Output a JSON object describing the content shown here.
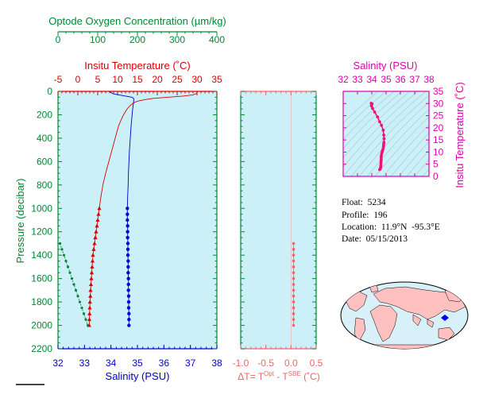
{
  "colors": {
    "panel_bg": "#ccf0f8",
    "oxygen": "#008833",
    "temperature": "#dd0000",
    "salinity": "#0000cc",
    "delta_t": "#ee6666",
    "ts_plot": "#dd00aa",
    "ts_points": "#ee1177",
    "land": "#ffc0c0",
    "ocean": "#d8f0f8"
  },
  "info": {
    "float": "Float:  5234",
    "profile": "Profile:  196",
    "location": "Location:  11.9°N  -95.3°E",
    "date": "Date:  05/15/2013"
  },
  "chart_data": [
    {
      "type": "line",
      "id": "main_profile",
      "ylabel": "Pressure (decibar)",
      "ylim": [
        2200,
        0
      ],
      "yticks": [
        0,
        200,
        400,
        600,
        800,
        1000,
        1200,
        1400,
        1600,
        1800,
        2000,
        2200
      ],
      "grid": false,
      "axes": {
        "oxygen": {
          "label": "Optode Oxygen Concentration (µm/kg)",
          "range": [
            0,
            400
          ],
          "ticks": [
            0,
            100,
            200,
            300,
            400
          ]
        },
        "temperature": {
          "label": "Insitu Temperature (˚C)",
          "range": [
            -5,
            35
          ],
          "ticks": [
            -5,
            0,
            5,
            10,
            15,
            20,
            25,
            30,
            35
          ]
        },
        "salinity": {
          "label": "Salinity (PSU)",
          "range": [
            32,
            38
          ],
          "ticks": [
            32,
            33,
            34,
            35,
            36,
            37,
            38
          ]
        }
      },
      "series": [
        {
          "axis": "temperature",
          "line": {
            "p": [
              0,
              5,
              10,
              20,
              30,
              40,
              50,
              60,
              70,
              80,
              90,
              100,
              120,
              150,
              200,
              250,
              300,
              400,
              500,
              600,
              700,
              800,
              900,
              1000
            ],
            "v": [
              30.1,
              30.1,
              30.0,
              29.8,
              29.0,
              26.5,
              22.5,
              19.0,
              17.0,
              15.5,
              14.5,
              14.0,
              13.2,
              12.4,
              11.5,
              10.8,
              10.2,
              9.4,
              8.6,
              7.8,
              7.0,
              6.3,
              5.8,
              5.4
            ]
          },
          "markers": {
            "p": [
              1000,
              1050,
              1100,
              1150,
              1200,
              1250,
              1300,
              1350,
              1400,
              1450,
              1500,
              1550,
              1600,
              1650,
              1700,
              1750,
              1800,
              1850,
              1900,
              1950,
              2000
            ],
            "v": [
              5.4,
              5.2,
              5.0,
              4.8,
              4.6,
              4.4,
              4.2,
              4.0,
              3.8,
              3.7,
              3.6,
              3.5,
              3.4,
              3.3,
              3.2,
              3.15,
              3.05,
              3.0,
              2.95,
              2.9,
              2.85
            ]
          }
        },
        {
          "axis": "salinity",
          "line": {
            "p": [
              0,
              5,
              10,
              20,
              30,
              40,
              50,
              60,
              70,
              80,
              100,
              150,
              200,
              300,
              400,
              500,
              600,
              700,
              800,
              900,
              1000
            ],
            "v": [
              33.95,
              33.97,
              34.0,
              34.08,
              34.3,
              34.55,
              34.8,
              34.85,
              34.87,
              34.86,
              34.85,
              34.82,
              34.8,
              34.76,
              34.73,
              34.7,
              34.68,
              34.66,
              34.65,
              34.63,
              34.62
            ]
          },
          "markers": {
            "p": [
              1000,
              1050,
              1100,
              1150,
              1200,
              1250,
              1300,
              1350,
              1400,
              1450,
              1500,
              1550,
              1600,
              1650,
              1700,
              1750,
              1800,
              1850,
              1900,
              1950,
              2000
            ],
            "v": [
              34.62,
              34.62,
              34.62,
              34.63,
              34.63,
              34.63,
              34.64,
              34.64,
              34.64,
              34.65,
              34.65,
              34.65,
              34.66,
              34.66,
              34.66,
              34.67,
              34.67,
              34.67,
              34.68,
              34.68,
              34.68
            ]
          }
        },
        {
          "axis": "oxygen",
          "markers": {
            "p": [
              1300,
              1350,
              1400,
              1450,
              1500,
              1550,
              1600,
              1650,
              1700,
              1750,
              1800,
              1850,
              1900,
              1950,
              2000
            ],
            "v": [
              5,
              10,
              15,
              20,
              25,
              30,
              35,
              40,
              45,
              50,
              55,
              60,
              65,
              70,
              75
            ]
          }
        }
      ]
    },
    {
      "type": "scatter",
      "id": "delta_t",
      "xlabel": "ΔT= T",
      "xlabel_sup1": "Opt",
      "xlabel_mid": " - T",
      "xlabel_sup2": "SBE",
      "xlabel_unit": " (˚C)",
      "xlim": [
        -1.0,
        0.5
      ],
      "xticks": [
        "-1.0",
        "-0.5",
        "0.0",
        "0.5"
      ],
      "ylim": [
        2200,
        0
      ],
      "points": {
        "p": [
          1300,
          1350,
          1400,
          1450,
          1500,
          1550,
          1600,
          1650,
          1700,
          1750,
          1800,
          1850,
          1900,
          1950,
          2000
        ],
        "v": [
          0.05,
          0.05,
          0.05,
          0.05,
          0.05,
          0.05,
          0.05,
          0.05,
          0.05,
          0.05,
          0.05,
          0.05,
          0.05,
          0.05,
          0.05
        ]
      }
    },
    {
      "type": "scatter",
      "id": "ts_diagram",
      "xlabel": "Salinity (PSU)",
      "ylabel": "Insitu Temperature (˚C)",
      "xlim": [
        32,
        38
      ],
      "ylim": [
        0,
        35
      ],
      "xticks": [
        32,
        33,
        34,
        35,
        36,
        37,
        38
      ],
      "yticks": [
        0,
        5,
        10,
        15,
        20,
        25,
        30,
        35
      ],
      "points": {
        "s": [
          34.55,
          34.6,
          34.62,
          34.63,
          34.64,
          34.65,
          34.66,
          34.66,
          34.67,
          34.7,
          34.73,
          34.76,
          34.8,
          34.82,
          34.83,
          34.85,
          34.86,
          34.84,
          34.8,
          34.68,
          34.55,
          34.4,
          34.2,
          34.05,
          33.98,
          34.02,
          33.96
        ],
        "t": [
          2.8,
          3.2,
          3.8,
          4.5,
          5.4,
          6.3,
          7.0,
          7.8,
          8.6,
          9.4,
          10.2,
          10.8,
          11.5,
          12.4,
          13.2,
          14.0,
          15.5,
          17.0,
          19.0,
          21.0,
          22.5,
          24.5,
          26.5,
          28.0,
          29.0,
          29.8,
          30.1
        ]
      }
    }
  ]
}
